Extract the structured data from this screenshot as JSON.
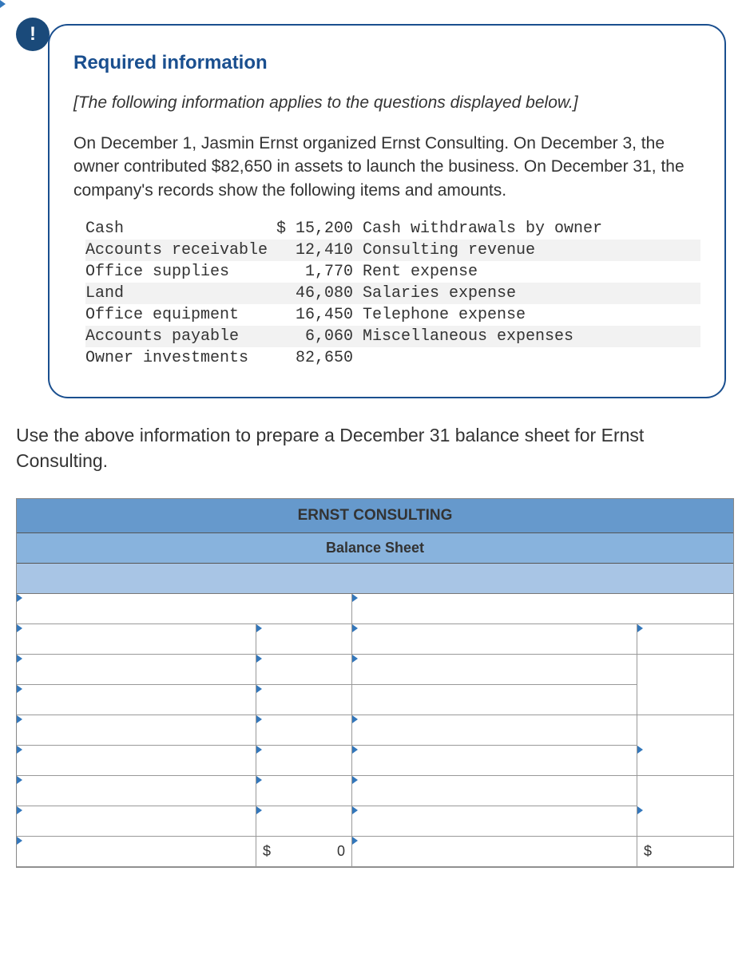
{
  "info": {
    "title": "Required information",
    "note": "[The following information applies to the questions displayed below.]",
    "paragraph": "On December 1, Jasmin Ernst organized Ernst Consulting. On December 3, the owner contributed $82,650 in assets to launch the business. On December 31, the company's records show the following items and amounts."
  },
  "accounts": {
    "rows": [
      {
        "l": "Cash",
        "a": "$ 15,200",
        "r": "Cash withdrawals by owner",
        "striped": false
      },
      {
        "l": "Accounts receivable",
        "a": "12,410",
        "r": "Consulting revenue",
        "striped": true
      },
      {
        "l": "Office supplies",
        "a": "1,770",
        "r": "Rent expense",
        "striped": false
      },
      {
        "l": "Land",
        "a": "46,080",
        "r": "Salaries expense",
        "striped": true
      },
      {
        "l": "Office equipment",
        "a": "16,450",
        "r": "Telephone expense",
        "striped": false
      },
      {
        "l": "Accounts payable",
        "a": "6,060",
        "r": "Miscellaneous expenses",
        "striped": true
      },
      {
        "l": "Owner investments",
        "a": "82,650",
        "r": "",
        "striped": false
      }
    ]
  },
  "instruction": "Use the above information to prepare a December 31 balance sheet for Ernst Consulting.",
  "sheet": {
    "company": "ERNST CONSULTING",
    "title": "Balance Sheet",
    "total_left_symbol": "$",
    "total_left_value": "0",
    "total_right_symbol": "$",
    "colors": {
      "header_bg": "#6699cc",
      "subheader_bg": "#88b3dd",
      "section_bg": "#a8c5e5",
      "border": "#999999",
      "dd_marker": "#3377bb"
    }
  }
}
